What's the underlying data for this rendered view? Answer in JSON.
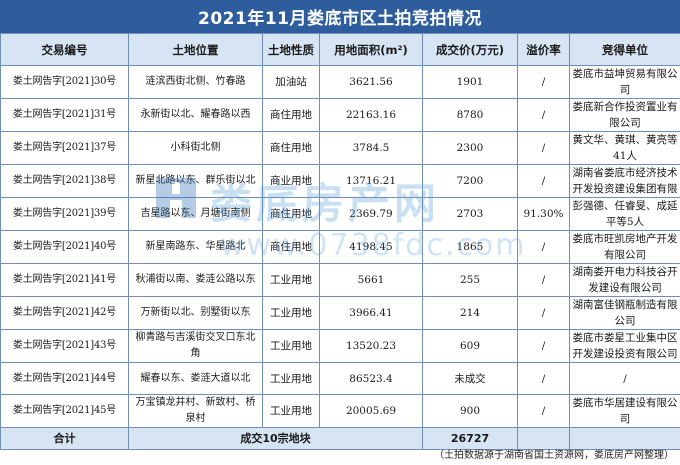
{
  "title": "2021年11月娄底市区土拍竞拍情况",
  "headers": {
    "code": "交易编号",
    "location": "土地位置",
    "use": "土地性质",
    "area": "用地面积(m²)",
    "price": "成交价(万元)",
    "premium": "溢价率",
    "winner": "竞得单位"
  },
  "rows": [
    {
      "code": "娄土网告字[2021]30号",
      "location": "涟滨西街北侧、竹春路",
      "use": "加油站",
      "area": "3621.56",
      "price": "1901",
      "premium": "/",
      "winner": "娄底市益坤贸易有限公司"
    },
    {
      "code": "娄土网告字[2021]31号",
      "location": "永新街以北、耀春路以西",
      "use": "商住用地",
      "area": "22163.16",
      "price": "8780",
      "premium": "/",
      "winner": "娄底新合作投资置业有限公司"
    },
    {
      "code": "娄土网告字[2021]37号",
      "location": "小科街北侧",
      "use": "商住用地",
      "area": "3784.5",
      "price": "2300",
      "premium": "/",
      "winner": "黄文华、黄琪、黄亮等41人"
    },
    {
      "code": "娄土网告字[2021]38号",
      "location": "新星北路以东、群乐街以北",
      "use": "商业用地",
      "area": "13716.21",
      "price": "7200",
      "premium": "/",
      "winner": "湖南省娄底市经济技术开发投资建设集团有限"
    },
    {
      "code": "娄土网告字[2021]39号",
      "location": "吉星路以东、月塘街南侧",
      "use": "商住用地",
      "area": "2369.79",
      "price": "2703",
      "premium": "91.30%",
      "winner": "彭强德、任睿旻、成延平等5人"
    },
    {
      "code": "娄土网告字[2021]40号",
      "location": "新星南路东、华星路北",
      "use": "商住用地",
      "area": "4198.45",
      "price": "1865",
      "premium": "/",
      "winner": "娄底市旺凯房地产开发有限公司"
    },
    {
      "code": "娄土网告字[2021]41号",
      "location": "秋浦街以南、娄涟公路以东",
      "use": "工业用地",
      "area": "5661",
      "price": "255",
      "premium": "/",
      "winner": "湖南娄开电力科技谷开发建设有限公司"
    },
    {
      "code": "娄土网告字[2021]42号",
      "location": "万新街以北、别墅街以东",
      "use": "工业用地",
      "area": "3966.41",
      "price": "214",
      "premium": "/",
      "winner": "湖南富佳钢瓶制造有限公司"
    },
    {
      "code": "娄土网告字[2021]43号",
      "location": "柳青路与吉溪街交叉口东北角",
      "use": "工业用地",
      "area": "13520.23",
      "price": "609",
      "premium": "/",
      "winner": "娄底市娄星工业集中区开发建设投资有限公司"
    },
    {
      "code": "娄土网告字[2021]44号",
      "location": "耀春以东、娄涟大道以北",
      "use": "工业用地",
      "area": "86523.4",
      "price": "未成交",
      "premium": "/",
      "winner": "/"
    },
    {
      "code": "娄土网告字[2021]45号",
      "location": "万宝镇龙井村、新致村、桥泉村",
      "use": "工业用地",
      "area": "20005.69",
      "price": "900",
      "premium": "/",
      "winner": "娄底市华居建设有限公司"
    }
  ],
  "total": {
    "label": "合计",
    "summary": "成交10宗地块",
    "price_total": "26727"
  },
  "note": "（土拍数据源于湖南省国土资源网，娄底房产网整理）",
  "watermark": {
    "text": "娄底房产网",
    "url": "www.0738fdc.com"
  },
  "colors": {
    "title_bg": "#2e5d9e",
    "header_bg": "#d7e4f3",
    "border": "#6f8fb5"
  }
}
